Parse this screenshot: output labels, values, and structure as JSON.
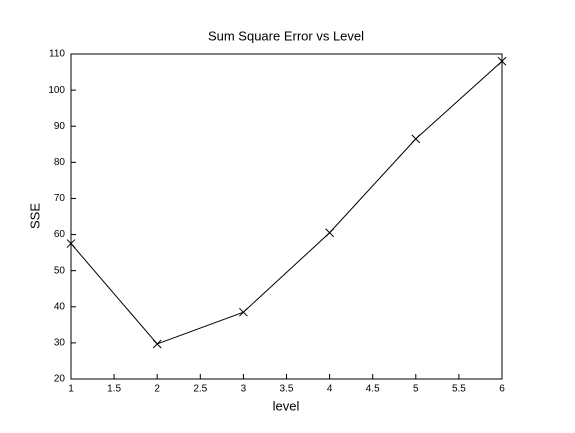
{
  "chart_data": {
    "type": "line",
    "title": "Sum Square Error vs Level",
    "x_label": "level",
    "y_label": "SSE",
    "x": [
      1,
      2,
      3,
      4,
      5,
      6
    ],
    "values": [
      57.5,
      29.7,
      38.5,
      60.5,
      86.5,
      108
    ],
    "color": "#000000",
    "marker": "x",
    "xlim": [
      1,
      6
    ],
    "xticks": [
      1,
      1.5,
      2,
      2.5,
      3,
      3.5,
      4,
      4.5,
      5,
      5.5,
      6
    ],
    "ylim": [
      20,
      110
    ],
    "yticks": [
      20,
      30,
      40,
      50,
      60,
      70,
      80,
      90,
      100,
      110
    ],
    "grid": false
  }
}
